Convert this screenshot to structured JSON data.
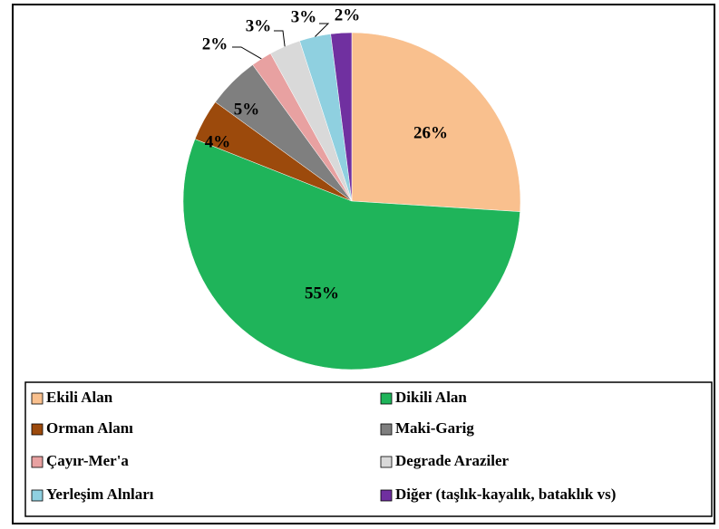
{
  "chart_data": {
    "type": "pie",
    "categories": [
      "Ekili Alan",
      "Dikili Alan",
      "Orman Alanı",
      "Maki-Garig",
      "Çayır-Mer'a",
      "Degrade Araziler",
      "Yerleşim Alnları",
      "Diğer (taşlık-kayalık, bataklık vs)"
    ],
    "values": [
      26,
      55,
      4,
      5,
      2,
      3,
      3,
      2
    ],
    "value_labels": [
      "26%",
      "55%",
      "4%",
      "5%",
      "2%",
      "3%",
      "3%",
      "2%"
    ],
    "colors": [
      "#f9c08e",
      "#1fb45a",
      "#9c4a0c",
      "#7f7f7f",
      "#e8a1a1",
      "#d9d9d9",
      "#8fd0e0",
      "#7030a0"
    ],
    "legend": "bottom"
  }
}
